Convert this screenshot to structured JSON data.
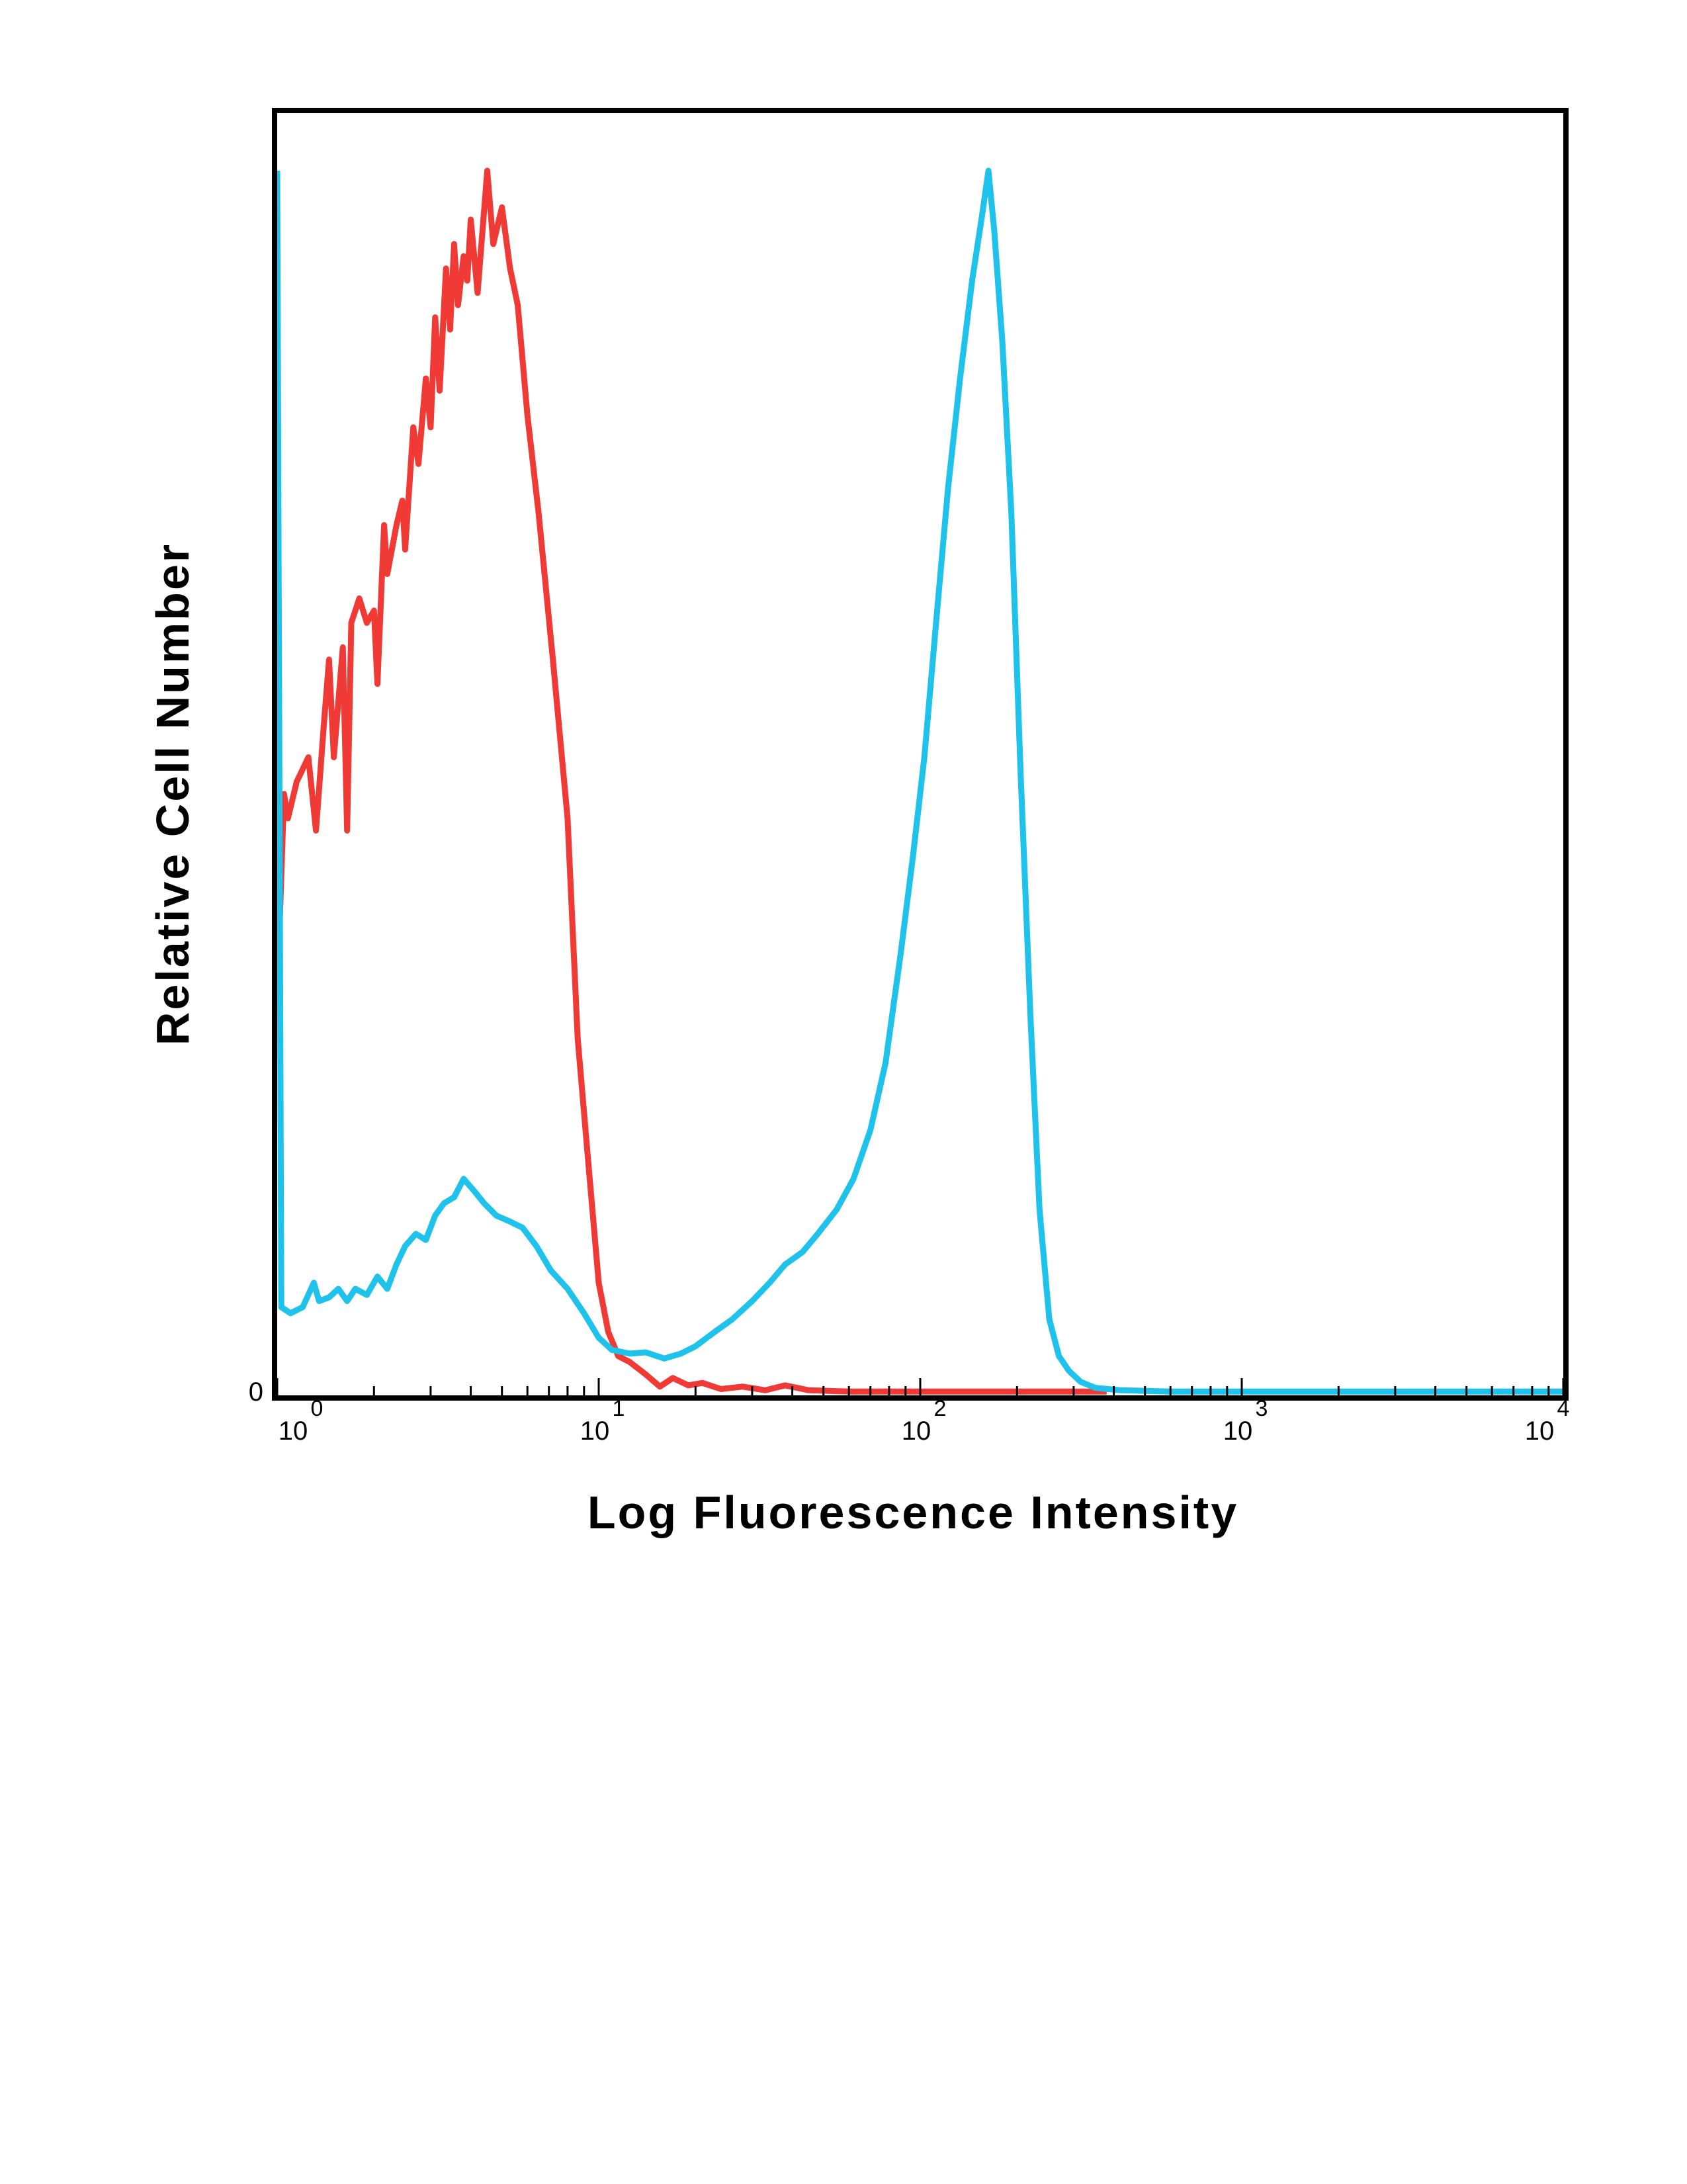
{
  "chart_data": {
    "type": "line",
    "title": "",
    "xlabel": "Log Fluorescence Intensity",
    "ylabel": "Relative Cell Number",
    "xscale": "log",
    "xlim": [
      1,
      10000
    ],
    "ylim": [
      0,
      100
    ],
    "grid": false,
    "legend": "none",
    "x_ticks": [
      {
        "base": "10",
        "exp": "0",
        "value": 1
      },
      {
        "base": "10",
        "exp": "1",
        "value": 10
      },
      {
        "base": "10",
        "exp": "2",
        "value": 100
      },
      {
        "base": "10",
        "exp": "3",
        "value": 1000
      },
      {
        "base": "10",
        "exp": "4",
        "value": 10000
      }
    ],
    "y_ticks": [
      {
        "label": "0",
        "value": 0
      }
    ],
    "series": [
      {
        "color": "#f03a35",
        "points": [
          [
            1.02,
            39
          ],
          [
            1.05,
            49
          ],
          [
            1.08,
            47
          ],
          [
            1.15,
            50
          ],
          [
            1.25,
            52
          ],
          [
            1.32,
            46
          ],
          [
            1.4,
            55
          ],
          [
            1.45,
            60
          ],
          [
            1.5,
            52
          ],
          [
            1.6,
            61
          ],
          [
            1.65,
            46
          ],
          [
            1.7,
            63
          ],
          [
            1.8,
            65
          ],
          [
            1.9,
            63
          ],
          [
            2.0,
            64
          ],
          [
            2.05,
            58
          ],
          [
            2.15,
            71
          ],
          [
            2.2,
            67
          ],
          [
            2.35,
            71
          ],
          [
            2.45,
            73
          ],
          [
            2.5,
            69
          ],
          [
            2.65,
            79
          ],
          [
            2.75,
            76
          ],
          [
            2.9,
            83
          ],
          [
            3.0,
            79
          ],
          [
            3.1,
            88
          ],
          [
            3.2,
            82
          ],
          [
            3.35,
            92
          ],
          [
            3.45,
            87
          ],
          [
            3.55,
            94
          ],
          [
            3.65,
            89
          ],
          [
            3.8,
            93
          ],
          [
            3.9,
            91
          ],
          [
            4.0,
            96
          ],
          [
            4.2,
            90
          ],
          [
            4.5,
            100
          ],
          [
            4.7,
            94
          ],
          [
            5.0,
            97
          ],
          [
            5.3,
            92
          ],
          [
            5.6,
            89
          ],
          [
            6.0,
            80
          ],
          [
            6.5,
            72
          ],
          [
            7.2,
            60
          ],
          [
            8.0,
            47
          ],
          [
            8.6,
            29
          ],
          [
            9.2,
            20
          ],
          [
            10.0,
            9
          ],
          [
            10.7,
            5
          ],
          [
            11.5,
            3
          ],
          [
            12.5,
            2.5
          ],
          [
            14.0,
            1.5
          ],
          [
            15.5,
            0.5
          ],
          [
            17.0,
            1.2
          ],
          [
            19.0,
            0.6
          ],
          [
            21.0,
            0.8
          ],
          [
            24.0,
            0.3
          ],
          [
            28.0,
            0.5
          ],
          [
            33.0,
            0.2
          ],
          [
            38.0,
            0.6
          ],
          [
            45.0,
            0.2
          ],
          [
            60.0,
            0.1
          ],
          [
            100.0,
            0.1
          ],
          [
            200.0,
            0.1
          ],
          [
            380.0,
            0.1
          ]
        ]
      },
      {
        "color": "#1ec2ea",
        "points": [
          [
            1.0,
            100
          ],
          [
            1.03,
            7
          ],
          [
            1.1,
            6.5
          ],
          [
            1.2,
            7
          ],
          [
            1.3,
            9
          ],
          [
            1.35,
            7.5
          ],
          [
            1.45,
            7.8
          ],
          [
            1.55,
            8.5
          ],
          [
            1.65,
            7.5
          ],
          [
            1.75,
            8.5
          ],
          [
            1.9,
            8
          ],
          [
            2.05,
            9.5
          ],
          [
            2.2,
            8.5
          ],
          [
            2.35,
            10.5
          ],
          [
            2.5,
            12
          ],
          [
            2.7,
            13
          ],
          [
            2.9,
            12.5
          ],
          [
            3.1,
            14.5
          ],
          [
            3.3,
            15.5
          ],
          [
            3.55,
            16
          ],
          [
            3.8,
            17.5
          ],
          [
            4.1,
            16.5
          ],
          [
            4.4,
            15.5
          ],
          [
            4.8,
            14.5
          ],
          [
            5.3,
            14
          ],
          [
            5.8,
            13.5
          ],
          [
            6.4,
            12
          ],
          [
            7.1,
            10
          ],
          [
            8.0,
            8.5
          ],
          [
            9.0,
            6.5
          ],
          [
            10.0,
            4.5
          ],
          [
            11.0,
            3.5
          ],
          [
            12.5,
            3.2
          ],
          [
            14.0,
            3.3
          ],
          [
            16.0,
            2.8
          ],
          [
            18.0,
            3.2
          ],
          [
            20.0,
            3.8
          ],
          [
            23.0,
            5.0
          ],
          [
            26.0,
            6.0
          ],
          [
            30.0,
            7.5
          ],
          [
            34.0,
            9.0
          ],
          [
            38.0,
            10.5
          ],
          [
            43.0,
            11.5
          ],
          [
            48.0,
            13.0
          ],
          [
            55.0,
            15.0
          ],
          [
            62.0,
            17.5
          ],
          [
            70.0,
            21.5
          ],
          [
            78.0,
            27
          ],
          [
            87.0,
            36
          ],
          [
            95.0,
            44
          ],
          [
            103.0,
            52
          ],
          [
            112.0,
            63
          ],
          [
            122.0,
            74
          ],
          [
            133.0,
            83
          ],
          [
            145.0,
            91
          ],
          [
            155.0,
            96
          ],
          [
            163.0,
            100
          ],
          [
            170.0,
            95
          ],
          [
            180.0,
            86
          ],
          [
            192.0,
            72
          ],
          [
            205.0,
            51
          ],
          [
            220.0,
            31
          ],
          [
            235.0,
            15
          ],
          [
            252.0,
            6
          ],
          [
            270.0,
            3
          ],
          [
            290.0,
            1.8
          ],
          [
            315.0,
            0.9
          ],
          [
            350.0,
            0.4
          ],
          [
            420.0,
            0.2
          ],
          [
            600.0,
            0.1
          ],
          [
            1000.0,
            0.1
          ],
          [
            3000.0,
            0.1
          ],
          [
            10000.0,
            0.1
          ]
        ]
      }
    ]
  }
}
